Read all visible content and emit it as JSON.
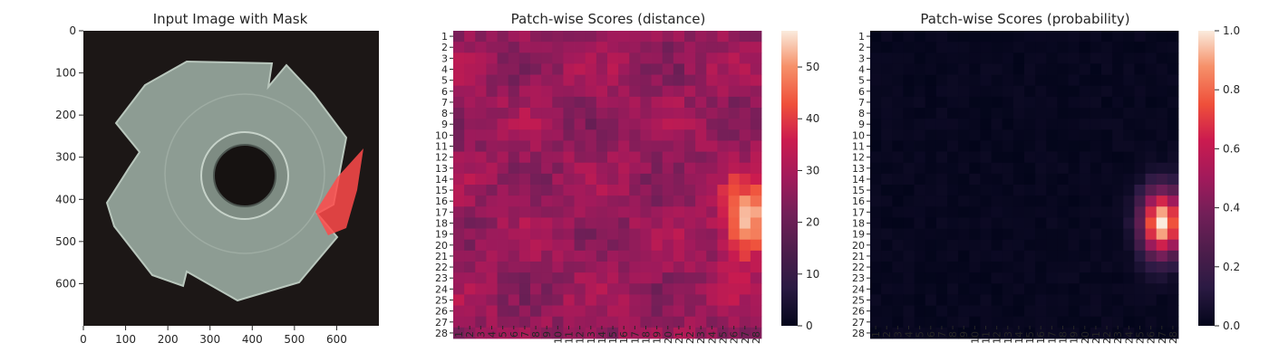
{
  "chart_data": [
    {
      "type": "image",
      "title": "Input Image with Mask",
      "xticks": [
        "0",
        "100",
        "200",
        "300",
        "400",
        "500",
        "600"
      ],
      "yticks": [
        "0",
        "100",
        "200",
        "300",
        "400",
        "500",
        "600"
      ],
      "xlim": [
        0,
        700
      ],
      "ylim": [
        700,
        0
      ],
      "object": "metal nut (four-lobed) on dark background",
      "mask_color": "#ff4a4a",
      "mask_region": "defect at right edge of nut, approx x 555-680, y 280-485"
    },
    {
      "type": "heatmap",
      "title": "Patch-wise Scores (distance)",
      "rows": [
        "1",
        "2",
        "3",
        "4",
        "5",
        "6",
        "7",
        "8",
        "9",
        "10",
        "11",
        "12",
        "13",
        "14",
        "15",
        "16",
        "17",
        "18",
        "19",
        "20",
        "21",
        "22",
        "23",
        "24",
        "25",
        "26",
        "27",
        "28"
      ],
      "cols": [
        "1",
        "2",
        "3",
        "4",
        "5",
        "6",
        "7",
        "8",
        "9",
        "10",
        "11",
        "12",
        "13",
        "14",
        "15",
        "16",
        "17",
        "18",
        "19",
        "20",
        "21",
        "22",
        "23",
        "24",
        "25",
        "26",
        "27",
        "28"
      ],
      "colorbar": {
        "min": 0,
        "max": 57,
        "ticks": [
          "0",
          "10",
          "20",
          "30",
          "40",
          "50"
        ],
        "colormap": "rocket"
      },
      "background_level": 27,
      "hotspot": {
        "row": 18,
        "col": 27,
        "peak": 57
      },
      "grid": false
    },
    {
      "type": "heatmap",
      "title": "Patch-wise Scores (probability)",
      "rows": [
        "1",
        "2",
        "3",
        "4",
        "5",
        "6",
        "7",
        "8",
        "9",
        "10",
        "11",
        "12",
        "13",
        "14",
        "15",
        "16",
        "17",
        "18",
        "19",
        "20",
        "21",
        "22",
        "23",
        "24",
        "25",
        "26",
        "27",
        "28"
      ],
      "cols": [
        "1",
        "2",
        "3",
        "4",
        "5",
        "6",
        "7",
        "8",
        "9",
        "10",
        "11",
        "12",
        "13",
        "14",
        "15",
        "16",
        "17",
        "18",
        "19",
        "20",
        "21",
        "22",
        "23",
        "24",
        "25",
        "26",
        "27",
        "28"
      ],
      "colorbar": {
        "min": 0,
        "max": 1.0,
        "ticks": [
          "0.0",
          "0.2",
          "0.4",
          "0.6",
          "0.8",
          "1.0"
        ],
        "colormap": "rocket"
      },
      "background_level": 0.0,
      "hotspot": {
        "row": 18,
        "col": 27,
        "peak": 1.0
      },
      "grid": false
    }
  ]
}
